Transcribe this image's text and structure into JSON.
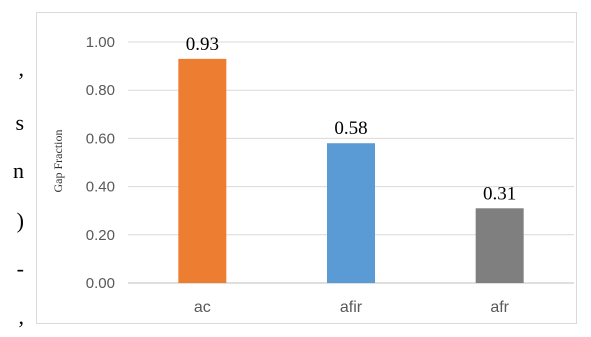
{
  "page_fragments": [
    ",",
    "s",
    "n",
    ")",
    "-",
    ","
  ],
  "chart_data": {
    "type": "bar",
    "title": "",
    "xlabel": "",
    "ylabel": "Gap Fraction",
    "categories": [
      "ac",
      "afir",
      "afr"
    ],
    "values": [
      0.93,
      0.58,
      0.31
    ],
    "data_labels": [
      "0.93",
      "0.58",
      "0.31"
    ],
    "colors": [
      "#ed7d31",
      "#5b9bd5",
      "#7f7f7f"
    ],
    "ylim": [
      0,
      1.0
    ],
    "yticks": [
      "0.00",
      "0.20",
      "0.40",
      "0.60",
      "0.80",
      "1.00"
    ],
    "grid": true,
    "legend": "none"
  }
}
